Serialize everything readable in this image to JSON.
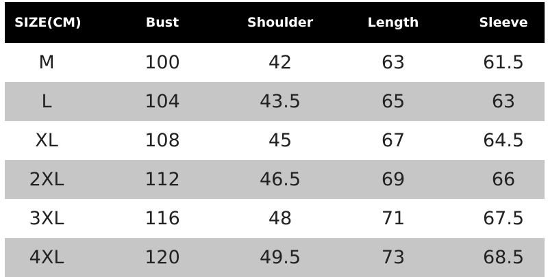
{
  "table": {
    "headers": [
      "SIZE(CM)",
      "Bust",
      "Shoulder",
      "Length",
      "Sleeve"
    ],
    "rows": [
      [
        "M",
        "100",
        "42",
        "63",
        "61.5"
      ],
      [
        "L",
        "104",
        "43.5",
        "65",
        "63"
      ],
      [
        "XL",
        "108",
        "45",
        "67",
        "64.5"
      ],
      [
        "2XL",
        "112",
        "46.5",
        "69",
        "66"
      ],
      [
        "3XL",
        "116",
        "48",
        "71",
        "67.5"
      ],
      [
        "4XL",
        "120",
        "49.5",
        "73",
        "68.5"
      ]
    ],
    "colors": {
      "header_bg": "#000000",
      "header_text": "#ffffff",
      "stripe": "#c6c6c6"
    }
  }
}
